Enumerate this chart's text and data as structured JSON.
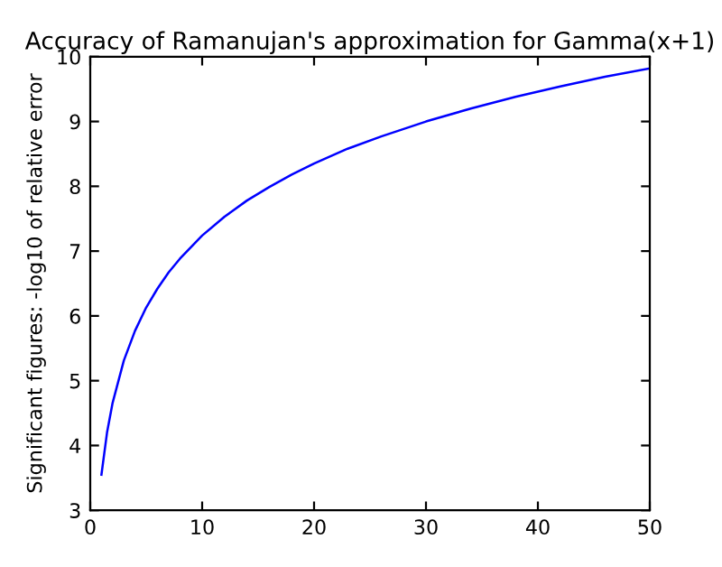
{
  "chart_data": {
    "type": "line",
    "title": "Accuracy of Ramanujan's approximation for Gamma(x+1)",
    "ylabel": "Significant figures: -log10 of relative error",
    "x": [
      1,
      1.5,
      2,
      3,
      4,
      5,
      6,
      7,
      8,
      10,
      12,
      14,
      16,
      18,
      20,
      23,
      26,
      30,
      34,
      38,
      42,
      46,
      50
    ],
    "series": [
      {
        "color": "#0000ff",
        "values": [
          3.55,
          4.2,
          4.66,
          5.31,
          5.77,
          6.13,
          6.42,
          6.67,
          6.88,
          7.24,
          7.53,
          7.78,
          7.99,
          8.18,
          8.35,
          8.58,
          8.77,
          9.0,
          9.2,
          9.38,
          9.54,
          9.69,
          9.82
        ]
      }
    ],
    "xlim": [
      0,
      50
    ],
    "xticks": [
      0,
      10,
      20,
      30,
      40,
      50
    ],
    "ylim": [
      3,
      10
    ],
    "yticks": [
      3,
      4,
      5,
      6,
      7,
      8,
      9,
      10
    ],
    "grid": false,
    "legend": false
  }
}
